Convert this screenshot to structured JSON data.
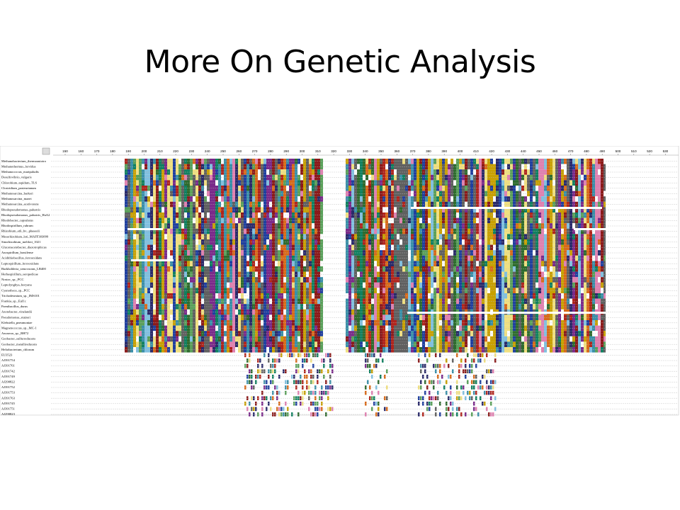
{
  "title": "More On Genetic Analysis",
  "alignment": {
    "ruler": [
      150,
      160,
      170,
      180,
      190,
      200,
      210,
      220,
      230,
      240,
      250,
      260,
      270,
      280,
      290,
      300,
      310,
      320,
      330,
      340,
      350,
      360,
      370,
      380,
      390,
      400,
      410,
      420,
      430,
      440,
      450,
      460,
      470,
      480,
      490,
      500,
      510,
      520,
      530
    ],
    "sequences": [
      "Methanobacterium_thermoautotro",
      "Methanothermus_fervidus",
      "Methanococcus_maripaludis",
      "Desulfovibrio_vulgaris",
      "Chlorobium_tepidum_TLS",
      "Clostridium_pasteurianum",
      "Methanosarcina_barkeri",
      "Methanosarcina_mazei",
      "Methanosarcina_acetivorans",
      "Rhodopseudomonas_palustris",
      "Rhodopseudomonas_palustris_HaA2",
      "Rhodobacter_capsulatus",
      "Rhodospirillum_rubrum",
      "Rhizobium_etli_bv._phaseoli",
      "Mesorhizobium_loti_MAFF303099",
      "Sinorhizobium_meliloti_1021",
      "Gluconacetobacter_diazotrophicus",
      "Azospirillum_brasilense",
      "Acidithiobacillus_ferrooxidans",
      "Leptospirillum_ferrooxidans",
      "Burkholderia_xenovorans_LB400",
      "Herbaspirillum_seropedicae",
      "Nostoc_sp._PCC",
      "Leptolyngbya_boryana",
      "Cyanothece_sp._PCC",
      "Trichodesmium_sp._IMS101",
      "Frankia_sp._EuI1c",
      "Paenibacillus_durus",
      "Azotobacter_vinelandii",
      "Pseudomonas_stutzeri",
      "Klebsiella_pneumoniae",
      "Magnetococcus_sp._MC-1",
      "Azoarcus_sp._BH72",
      "Geobacter_sulfurreducens",
      "Geobacter_metallireducens",
      "Heliobacterium_chlorum",
      "EU3523",
      "AJ391754",
      "AJ391761",
      "AJ391742",
      "AJ391749",
      "AJ290822",
      "AJ391752",
      "AJ391753",
      "AJ391763",
      "AJ391745",
      "AJ391751",
      "AJ290823"
    ]
  }
}
